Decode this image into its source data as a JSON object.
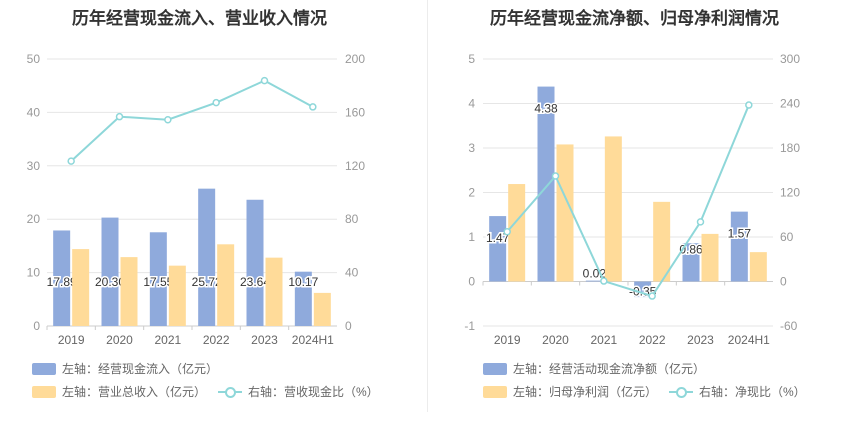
{
  "chart_data": [
    {
      "type": "bar",
      "title": "历年经营现金流入、营业收入情况",
      "categories": [
        "2019",
        "2020",
        "2021",
        "2022",
        "2023",
        "2024H1"
      ],
      "left_axis": {
        "min": 0,
        "max": 50,
        "ticks": [
          0,
          10,
          20,
          30,
          40,
          50
        ]
      },
      "right_axis": {
        "min": 0,
        "max": 200,
        "ticks": [
          0,
          40,
          80,
          120,
          160,
          200
        ]
      },
      "series": [
        {
          "name": "左轴：经营现金流入（亿元）",
          "axis": "left",
          "kind": "bar",
          "color": "#8faadc",
          "values": [
            17.89,
            20.3,
            17.55,
            25.72,
            23.64,
            10.17
          ],
          "labels": [
            "17.89",
            "20.30",
            "17.55",
            "25.72",
            "23.64",
            "10.17"
          ]
        },
        {
          "name": "左轴：营业总收入（亿元）",
          "axis": "left",
          "kind": "bar",
          "color": "#ffdb99",
          "values": [
            14.4,
            12.9,
            11.3,
            15.3,
            12.8,
            6.2
          ]
        },
        {
          "name": "右轴：营收现金比（%）",
          "axis": "right",
          "kind": "line",
          "color": "#8ed7d9",
          "values": [
            123.5,
            156.8,
            154.5,
            167.3,
            183.8,
            164.1
          ]
        }
      ]
    },
    {
      "type": "bar",
      "title": "历年经营现金流净额、归母净利润情况",
      "categories": [
        "2019",
        "2020",
        "2021",
        "2022",
        "2023",
        "2024H1"
      ],
      "left_axis": {
        "min": -1,
        "max": 5,
        "ticks": [
          -1,
          0,
          1,
          2,
          3,
          4,
          5
        ]
      },
      "right_axis": {
        "min": -60,
        "max": 300,
        "ticks": [
          -60,
          0,
          60,
          120,
          180,
          240,
          300
        ]
      },
      "series": [
        {
          "name": "左轴：经营活动现金流净额（亿元）",
          "axis": "left",
          "kind": "bar",
          "color": "#8faadc",
          "values": [
            1.47,
            4.38,
            0.02,
            -0.35,
            0.86,
            1.57
          ],
          "labels": [
            "1.47",
            "4.38",
            "0.02",
            "-0.35",
            "0.86",
            "1.57"
          ]
        },
        {
          "name": "左轴：归母净利润（亿元）",
          "axis": "left",
          "kind": "bar",
          "color": "#ffdb99",
          "values": [
            2.19,
            3.08,
            3.26,
            1.79,
            1.07,
            0.66
          ]
        },
        {
          "name": "右轴：净现比（%）",
          "axis": "right",
          "kind": "line",
          "color": "#8ed7d9",
          "values": [
            67.1,
            142.2,
            0.6,
            -19.6,
            80.4,
            237.9
          ]
        }
      ]
    }
  ]
}
